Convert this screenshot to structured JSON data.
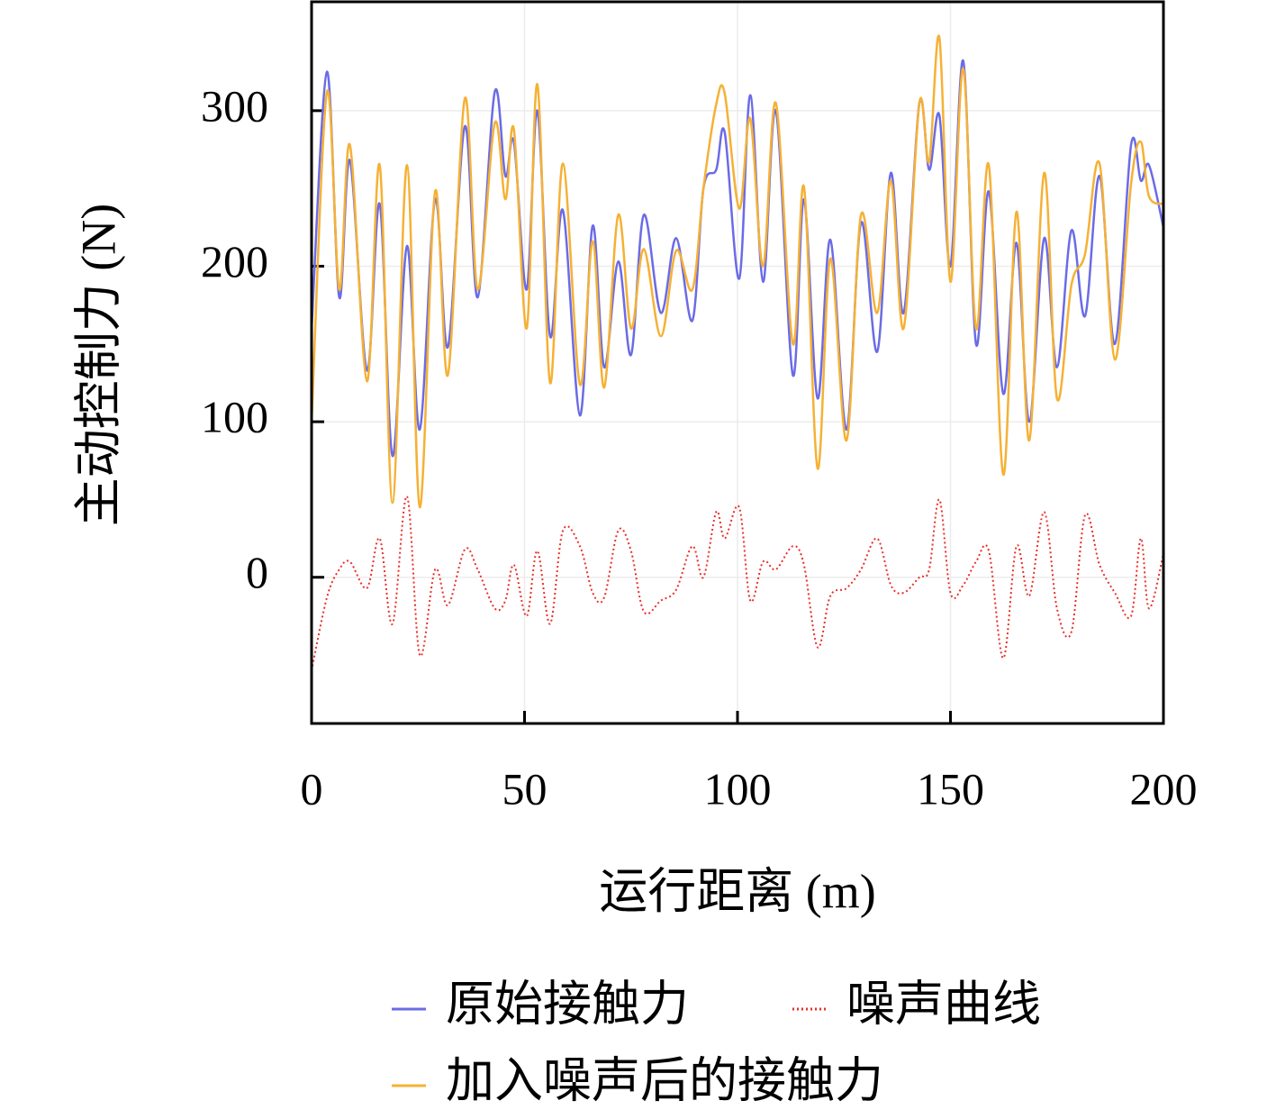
{
  "chart_data": {
    "type": "line",
    "x_label": "运行距离 (m)",
    "y_label": "主动控制力 (N)",
    "x": [
      0,
      3.6,
      6.5,
      9,
      13,
      16,
      19,
      22.4,
      25.4,
      29,
      32,
      36,
      39,
      43,
      45.5,
      47.5,
      50.5,
      53,
      56,
      59,
      63,
      66,
      68.7,
      72,
      75,
      78,
      82,
      85.6,
      89.4,
      92,
      95,
      97,
      100.4,
      103,
      106,
      109,
      113,
      115.6,
      118.8,
      121.8,
      125.6,
      129,
      132.8,
      136,
      139,
      142.7,
      145,
      147.4,
      150,
      153,
      156,
      159,
      162.4,
      165.5,
      168.5,
      172,
      175,
      178.4,
      181.6,
      185,
      188.6,
      192.4,
      194.7,
      196.6,
      200
    ],
    "series": [
      {
        "name": "原始接触力",
        "color": "#6b6be6",
        "style": "solid",
        "values": [
          160,
          325,
          180,
          268,
          133,
          240,
          78,
          213,
          95,
          243,
          148,
          290,
          180,
          312,
          258,
          280,
          185,
          300,
          155,
          236,
          104,
          226,
          135,
          203,
          143,
          233,
          170,
          218,
          165,
          250,
          262,
          286,
          192,
          310,
          190,
          300,
          130,
          243,
          115,
          217,
          95,
          228,
          145,
          260,
          170,
          305,
          262,
          297,
          200,
          332,
          150,
          248,
          118,
          215,
          100,
          218,
          135,
          223,
          168,
          258,
          150,
          278,
          255,
          265,
          225
        ]
      },
      {
        "name": "噪声曲线",
        "color": "#e8302a",
        "style": "dotted",
        "values": [
          -60,
          -13,
          5,
          10,
          -7,
          25,
          -30,
          52,
          -50,
          5,
          -18,
          18,
          5,
          -20,
          -15,
          8,
          -25,
          17,
          -30,
          30,
          20,
          -10,
          -13,
          30,
          17,
          -22,
          -15,
          -8,
          20,
          0,
          42,
          25,
          45,
          -15,
          10,
          5,
          20,
          8,
          -45,
          -12,
          -7,
          5,
          25,
          -5,
          -10,
          0,
          5,
          50,
          -10,
          -5,
          10,
          17,
          -52,
          20,
          -12,
          42,
          -20,
          -35,
          40,
          8,
          -10,
          -25,
          25,
          -20,
          15
        ]
      },
      {
        "name": "加入噪声后的接触力",
        "color": "#f5b135",
        "style": "solid",
        "values": [
          100,
          312,
          185,
          278,
          126,
          265,
          48,
          265,
          45,
          248,
          130,
          308,
          185,
          292,
          243,
          288,
          160,
          317,
          125,
          266,
          124,
          216,
          122,
          233,
          160,
          211,
          155,
          210,
          185,
          250,
          304,
          311,
          237,
          295,
          200,
          305,
          150,
          251,
          70,
          205,
          88,
          233,
          170,
          255,
          160,
          305,
          267,
          347,
          190,
          327,
          160,
          265,
          66,
          235,
          88,
          260,
          115,
          188,
          208,
          266,
          140,
          253,
          280,
          245,
          240
        ]
      }
    ],
    "xlim": [
      0,
      200
    ],
    "xticks": [
      0,
      50,
      100,
      150,
      200
    ],
    "ylim": [
      -94,
      370
    ],
    "yticks": [
      0,
      100,
      200,
      300
    ],
    "grid": true,
    "legend": "bottom"
  }
}
